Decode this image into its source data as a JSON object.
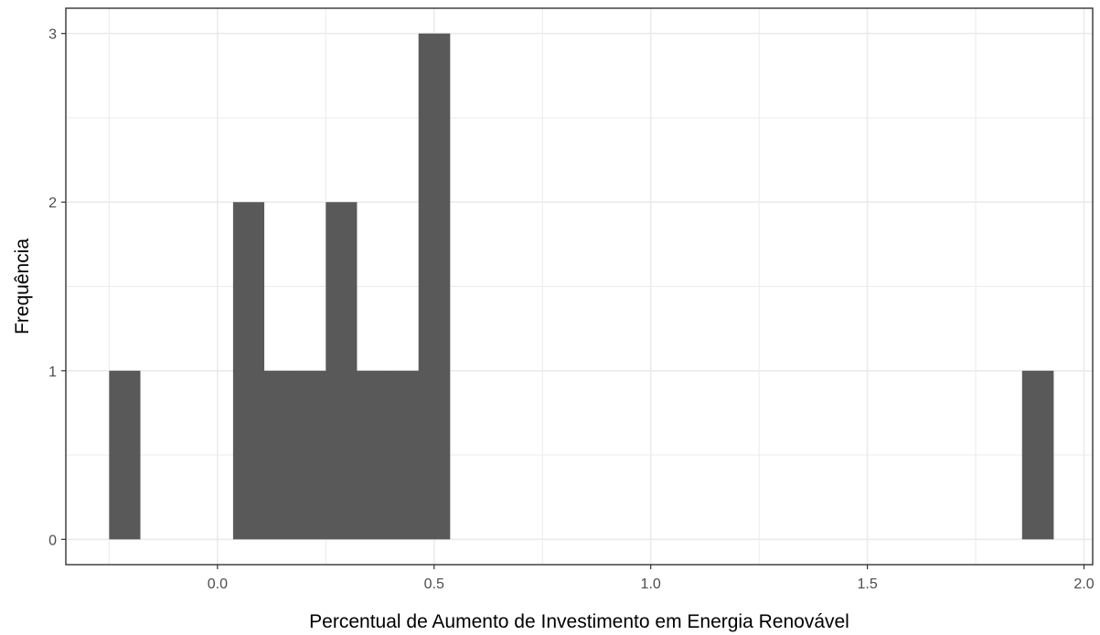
{
  "chart_data": {
    "type": "bar",
    "subtype": "histogram",
    "title": "",
    "xlabel": "Percentual de Aumento de Investimento em Energia Renovável",
    "ylabel": "Frequência",
    "xlim": [
      -0.35,
      2.02
    ],
    "ylim": [
      -0.15,
      3.15
    ],
    "x_ticks": [
      0.0,
      0.5,
      1.0,
      1.5,
      2.0
    ],
    "x_tick_labels": [
      "0.0",
      "0.5",
      "1.0",
      "1.5",
      "2.0"
    ],
    "y_ticks": [
      0,
      1,
      2,
      3
    ],
    "y_tick_labels": [
      "0",
      "1",
      "2",
      "3"
    ],
    "bin_width": 0.0714,
    "bins": [
      {
        "x0": -0.25,
        "x1": -0.179,
        "count": 1
      },
      {
        "x0": 0.036,
        "x1": 0.107,
        "count": 2
      },
      {
        "x0": 0.107,
        "x1": 0.179,
        "count": 1
      },
      {
        "x0": 0.179,
        "x1": 0.25,
        "count": 1
      },
      {
        "x0": 0.25,
        "x1": 0.321,
        "count": 2
      },
      {
        "x0": 0.321,
        "x1": 0.393,
        "count": 1
      },
      {
        "x0": 0.393,
        "x1": 0.464,
        "count": 1
      },
      {
        "x0": 0.464,
        "x1": 0.536,
        "count": 3
      },
      {
        "x0": 1.857,
        "x1": 1.929,
        "count": 1
      }
    ],
    "grid": true,
    "bar_color": "#595959",
    "grid_color": "#ebebeb",
    "panel_border_color": "#333333"
  }
}
